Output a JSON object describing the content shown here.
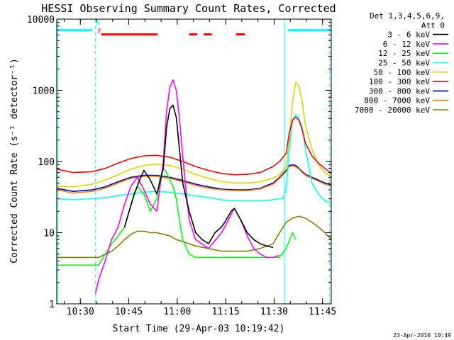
{
  "chart_data": {
    "type": "line",
    "title": "HESSI Observing Summary Count Rates, Corrected",
    "xlabel": "Start Time (29-Apr-03 10:19:42)",
    "ylabel": "Corrected Count Rate (s⁻¹ detector⁻¹)",
    "x_unit": "minutes after 10:19:42 on 29-Apr-03",
    "xlim": [
      3,
      88
    ],
    "ylim": [
      1,
      10000
    ],
    "yscale": "log",
    "x_ticks": [
      {
        "value": 10.3,
        "label": "10:30"
      },
      {
        "value": 25.3,
        "label": "10:45"
      },
      {
        "value": 40.3,
        "label": "11:00"
      },
      {
        "value": 55.3,
        "label": "11:15"
      },
      {
        "value": 70.3,
        "label": "11:30"
      },
      {
        "value": 85.3,
        "label": "11:45"
      }
    ],
    "y_ticks": [
      {
        "value": 1,
        "label": "1"
      },
      {
        "value": 10,
        "label": "10"
      },
      {
        "value": 100,
        "label": "100"
      },
      {
        "value": 1000,
        "label": "1000"
      },
      {
        "value": 10000,
        "label": "10000"
      }
    ],
    "legend_header": [
      "Det 1,3,4,5,6,9,",
      "Att 0"
    ],
    "legend_position": "right",
    "series": [
      {
        "name": "3 - 6 keV",
        "color": "#000000",
        "x": [
          3,
          10,
          18,
          24,
          27,
          29,
          30,
          32,
          34,
          36,
          37,
          38,
          39,
          40,
          42,
          44,
          46,
          48,
          50,
          52,
          54,
          55,
          57,
          58,
          60,
          62,
          64,
          66,
          68,
          70
        ],
        "y": [
          null,
          null,
          null,
          12,
          35,
          60,
          75,
          55,
          35,
          80,
          300,
          550,
          620,
          420,
          50,
          20,
          10,
          8,
          7,
          10,
          12,
          14,
          20,
          22,
          15,
          10,
          8,
          7,
          6.5,
          6.2
        ]
      },
      {
        "name": "6 - 12 keV",
        "color": "#ff00ff",
        "x": [
          3,
          10,
          12,
          15,
          16,
          18,
          20,
          22,
          24,
          26,
          28,
          30,
          32,
          34,
          36,
          37,
          38,
          39,
          40,
          41,
          42,
          43,
          44,
          46,
          50,
          54,
          55,
          57,
          58,
          60,
          62,
          64,
          66,
          68,
          70,
          72
        ],
        "y": [
          null,
          null,
          null,
          1.4,
          2.2,
          4,
          8,
          12,
          25,
          45,
          60,
          40,
          25,
          20,
          100,
          500,
          1100,
          1400,
          1000,
          400,
          120,
          40,
          15,
          8,
          6,
          10,
          12,
          18,
          22,
          15,
          9,
          6,
          5,
          4.5,
          4.5,
          4.8
        ]
      },
      {
        "name": "12 - 25 keV",
        "color": "#00ff00",
        "x": [
          3,
          10,
          16,
          18,
          20,
          22,
          24,
          26,
          28,
          30,
          32,
          34,
          35,
          36,
          37,
          38,
          39,
          40,
          41,
          42,
          44,
          46,
          50,
          54,
          56,
          58,
          60,
          62,
          64,
          66,
          68,
          70,
          72,
          74,
          76,
          77
        ],
        "y": [
          3.5,
          3.5,
          3.5,
          5,
          7,
          9,
          12,
          25,
          45,
          35,
          20,
          30,
          60,
          80,
          70,
          55,
          45,
          30,
          15,
          8,
          5,
          4.5,
          4.5,
          4.5,
          4.5,
          4.5,
          4.5,
          4.5,
          4.5,
          4.5,
          4.5,
          4.5,
          4.5,
          6,
          10,
          8
        ]
      },
      {
        "name": "25 - 50 keV",
        "color": "#00ffff",
        "x": [
          3,
          8,
          14,
          18,
          22,
          26,
          30,
          34,
          38,
          42,
          46,
          50,
          54,
          58,
          62,
          66,
          70,
          72,
          73,
          74,
          75,
          76,
          77,
          78,
          79,
          80,
          82,
          84,
          86,
          88
        ],
        "y": [
          30,
          29,
          30,
          31,
          33,
          35,
          37,
          38,
          37,
          35,
          33,
          31,
          29,
          28,
          28,
          28,
          29,
          30,
          30,
          40,
          150,
          380,
          450,
          400,
          300,
          150,
          50,
          35,
          28,
          26
        ]
      },
      {
        "name": "50 - 100 keV",
        "color": "#e6d200",
        "x": [
          3,
          8,
          14,
          18,
          22,
          26,
          30,
          34,
          38,
          42,
          46,
          50,
          54,
          58,
          62,
          66,
          70,
          72,
          74,
          75,
          76,
          77,
          78,
          79,
          80,
          82,
          84,
          86,
          88
        ],
        "y": [
          45,
          44,
          48,
          55,
          65,
          78,
          88,
          92,
          88,
          78,
          66,
          58,
          52,
          50,
          50,
          52,
          58,
          65,
          85,
          200,
          700,
          1300,
          1150,
          700,
          320,
          150,
          90,
          70,
          60
        ]
      },
      {
        "name": "100 - 300 keV",
        "color": "#ff0000",
        "x": [
          3,
          8,
          14,
          18,
          22,
          26,
          30,
          34,
          38,
          42,
          46,
          50,
          54,
          58,
          62,
          66,
          70,
          72,
          74,
          75,
          76,
          77,
          78,
          79,
          80,
          82,
          84,
          86,
          88
        ],
        "y": [
          78,
          70,
          72,
          80,
          95,
          110,
          120,
          122,
          115,
          100,
          85,
          75,
          68,
          65,
          66,
          70,
          85,
          100,
          130,
          250,
          380,
          420,
          380,
          280,
          180,
          120,
          95,
          80,
          68
        ]
      },
      {
        "name": "300 - 800 keV",
        "color": "#0000aa",
        "x": [
          3,
          8,
          14,
          18,
          22,
          26,
          30,
          34,
          38,
          42,
          46,
          50,
          54,
          58,
          62,
          66,
          70,
          72,
          74,
          75,
          76,
          77,
          78,
          79,
          80,
          82,
          84,
          86,
          88
        ],
        "y": [
          42,
          38,
          40,
          44,
          52,
          60,
          64,
          64,
          60,
          54,
          48,
          44,
          41,
          40,
          40,
          42,
          50,
          60,
          75,
          88,
          90,
          88,
          80,
          72,
          66,
          60,
          55,
          50,
          47
        ]
      },
      {
        "name": "800 - 7000 keV",
        "color": "#ff8000",
        "x": [
          3,
          8,
          14,
          18,
          22,
          26,
          30,
          34,
          38,
          42,
          46,
          50,
          54,
          58,
          62,
          66,
          70,
          72,
          74,
          75,
          76,
          77,
          78,
          79,
          80,
          82,
          84,
          86,
          88
        ],
        "y": [
          40,
          36,
          38,
          42,
          50,
          58,
          62,
          62,
          58,
          52,
          46,
          42,
          40,
          39,
          39,
          41,
          48,
          58,
          72,
          84,
          86,
          84,
          78,
          70,
          64,
          58,
          53,
          48,
          45
        ]
      },
      {
        "name": "7000 - 20000 keV",
        "color": "#808000",
        "x": [
          3,
          10,
          16,
          18,
          20,
          22,
          24,
          26,
          28,
          30,
          32,
          34,
          36,
          38,
          40,
          42,
          44,
          46,
          50,
          54,
          58,
          62,
          66,
          70,
          72,
          74,
          76,
          78,
          80,
          82,
          84,
          86,
          88
        ],
        "y": [
          4.5,
          4.5,
          4.5,
          5,
          5.5,
          6.5,
          8,
          9.5,
          10.5,
          10.5,
          10,
          10,
          9.5,
          9,
          8,
          7.5,
          7,
          6.5,
          6,
          5.5,
          5.5,
          5.5,
          6,
          7,
          10,
          14,
          16,
          17,
          16,
          14,
          12,
          10,
          8
        ]
      }
    ],
    "annotations": [
      {
        "text": "N",
        "x": 15.2,
        "y": 8200,
        "color": "#00ffff"
      },
      {
        "text": "F",
        "x": 15.7,
        "y": 6300,
        "color": "#ff0000"
      }
    ],
    "flag_bars": [
      {
        "color": "#00ffff",
        "y": 7000,
        "segments": [
          [
            3,
            14
          ],
          [
            74.5,
            88
          ]
        ]
      },
      {
        "color": "#ff0000",
        "y": 6100,
        "segments": [
          [
            16.8,
            34.2
          ],
          [
            44,
            46.5
          ],
          [
            48.5,
            51
          ],
          [
            58.5,
            61.2
          ]
        ]
      }
    ],
    "vertical_lines": [
      {
        "x": 15,
        "color": "#00ffff",
        "dash": true
      },
      {
        "x": 73.5,
        "color": "#00ffff",
        "dash": false
      },
      {
        "x": 87.5,
        "color": "#00ffff",
        "dash": true
      },
      {
        "x": 3.2,
        "color": "#00ffff",
        "dash": false
      }
    ],
    "footer_date": "23-Apr-2010 10:49"
  }
}
